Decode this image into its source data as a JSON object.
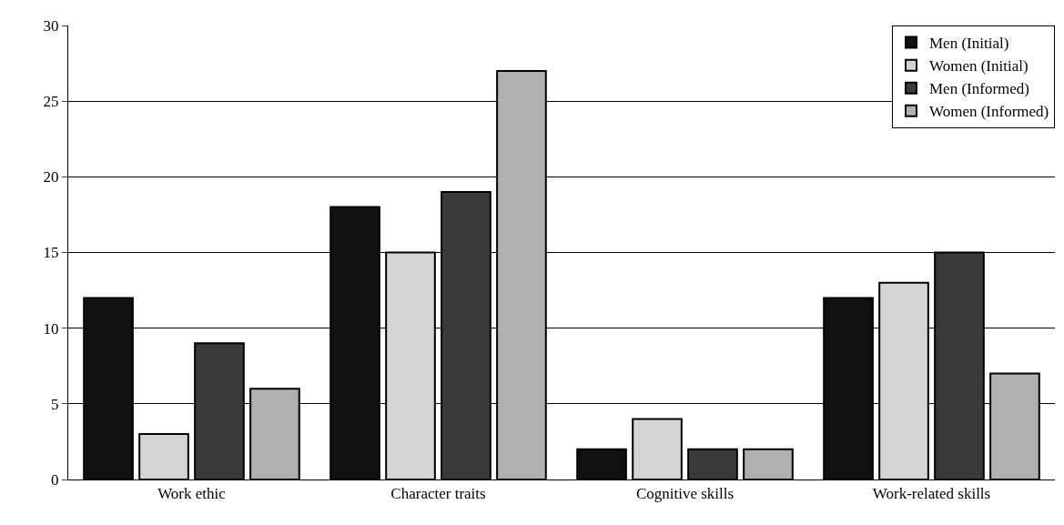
{
  "chart_data": {
    "type": "bar",
    "categories": [
      "Work ethic",
      "Character traits",
      "Cognitive skills",
      "Work-related skills"
    ],
    "series": [
      {
        "name": "Men (Initial)",
        "color": "#111111",
        "values": [
          12,
          18,
          2,
          12
        ]
      },
      {
        "name": "Women (Initial)",
        "color": "#d4d4d4",
        "values": [
          3,
          15,
          4,
          13
        ]
      },
      {
        "name": "Men (Informed)",
        "color": "#3a3a3a",
        "values": [
          9,
          19,
          2,
          15
        ]
      },
      {
        "name": "Women (Informed)",
        "color": "#b0b0b0",
        "values": [
          6,
          27,
          2,
          7
        ]
      }
    ],
    "ylim": [
      0,
      30
    ],
    "yticks": [
      0,
      5,
      10,
      15,
      20,
      25,
      30
    ],
    "grid": "y",
    "legend": "top right"
  }
}
